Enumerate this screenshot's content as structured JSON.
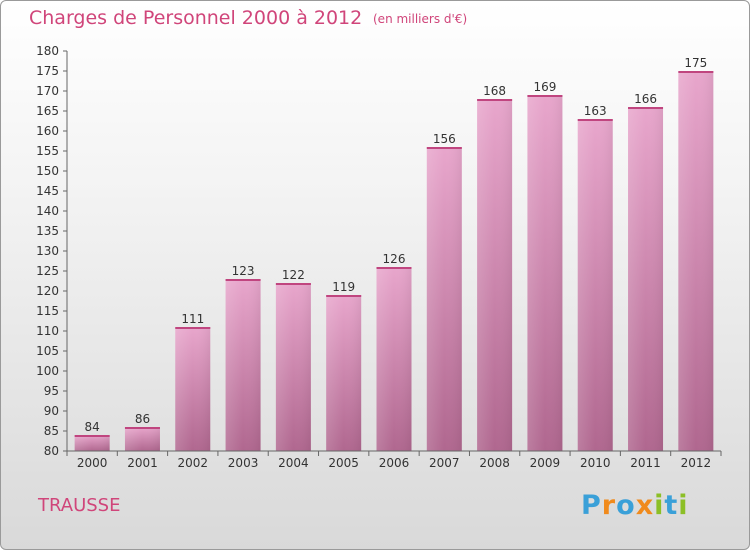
{
  "header": {
    "title": "Charges de Personnel 2000 à 2012",
    "subtitle": "(en milliers d'€)"
  },
  "footer": {
    "commune": "TRAUSSE",
    "logo_letters": [
      {
        "char": "P",
        "color": "#3aa0d8"
      },
      {
        "char": "r",
        "color": "#f08a1c"
      },
      {
        "char": "o",
        "color": "#3aa0d8"
      },
      {
        "char": "x",
        "color": "#f08a1c"
      },
      {
        "char": "i",
        "color": "#8cbf26"
      },
      {
        "char": "t",
        "color": "#3aa0d8"
      },
      {
        "char": "i",
        "color": "#8cbf26"
      }
    ]
  },
  "colors": {
    "accent": "#d0457a",
    "bar_top": "#e8a6cc",
    "bar_bottom": "#b0678f",
    "axis": "#666666",
    "grid": "#cccccc"
  },
  "chart_data": {
    "type": "bar",
    "categories": [
      "2000",
      "2001",
      "2002",
      "2003",
      "2004",
      "2005",
      "2006",
      "2007",
      "2008",
      "2009",
      "2010",
      "2011",
      "2012"
    ],
    "values": [
      84,
      86,
      111,
      123,
      122,
      119,
      126,
      156,
      168,
      169,
      163,
      166,
      175
    ],
    "ylim": [
      80,
      180
    ],
    "ytick_step": 5,
    "grid": false,
    "data_labels": true
  }
}
